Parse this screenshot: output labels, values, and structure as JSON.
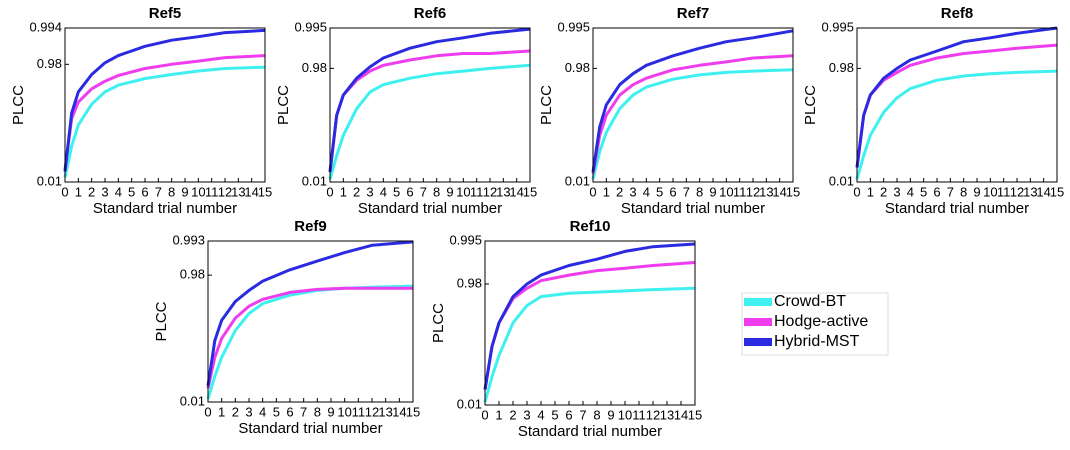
{
  "chart_data": [
    {
      "type": "line",
      "title": "Ref5",
      "xlabel": "Standard trial number",
      "ylabel": "PLCC",
      "yscale": "log-complement",
      "x": [
        0,
        0.5,
        1,
        2,
        3,
        4,
        6,
        8,
        10,
        12,
        15
      ],
      "xlim": [
        0,
        15
      ],
      "xticks": [
        0,
        1,
        2,
        3,
        4,
        5,
        6,
        7,
        8,
        9,
        10,
        11,
        12,
        13,
        14,
        15
      ],
      "ylim": [
        0.01,
        0.994
      ],
      "yticks": [
        0.01,
        0.98,
        0.994
      ],
      "series": [
        {
          "name": "Crowd-BT",
          "color": "#3ff0f0",
          "values": [
            0.15,
            0.7,
            0.85,
            0.925,
            0.95,
            0.96,
            0.968,
            0.972,
            0.975,
            0.977,
            0.978
          ]
        },
        {
          "name": "Hodge-active",
          "color": "#ee3cee",
          "values": [
            0.35,
            0.88,
            0.93,
            0.955,
            0.965,
            0.971,
            0.977,
            0.98,
            0.982,
            0.984,
            0.985
          ]
        },
        {
          "name": "Hybrid-MST",
          "color": "#2a2ae0",
          "values": [
            0.3,
            0.9,
            0.95,
            0.972,
            0.981,
            0.985,
            0.989,
            0.991,
            0.992,
            0.993,
            0.9935
          ]
        }
      ]
    },
    {
      "type": "line",
      "title": "Ref6",
      "xlabel": "Standard trial number",
      "ylabel": "PLCC",
      "yscale": "log-complement",
      "x": [
        0,
        0.5,
        1,
        2,
        3,
        4,
        6,
        8,
        10,
        12,
        15
      ],
      "xlim": [
        0,
        15
      ],
      "xticks": [
        0,
        1,
        2,
        3,
        4,
        5,
        6,
        7,
        8,
        9,
        10,
        11,
        12,
        13,
        14,
        15
      ],
      "ylim": [
        0.01,
        0.995
      ],
      "yticks": [
        0.01,
        0.98,
        0.995
      ],
      "series": [
        {
          "name": "Crowd-BT",
          "color": "#3ff0f0",
          "values": [
            0.1,
            0.6,
            0.8,
            0.92,
            0.955,
            0.965,
            0.972,
            0.976,
            0.978,
            0.98,
            0.982
          ]
        },
        {
          "name": "Hodge-active",
          "color": "#ee3cee",
          "values": [
            0.3,
            0.9,
            0.95,
            0.97,
            0.978,
            0.982,
            0.985,
            0.987,
            0.988,
            0.988,
            0.989
          ]
        },
        {
          "name": "Hybrid-MST",
          "color": "#2a2ae0",
          "values": [
            0.3,
            0.9,
            0.95,
            0.972,
            0.981,
            0.986,
            0.99,
            0.992,
            0.993,
            0.994,
            0.9948
          ]
        }
      ]
    },
    {
      "type": "line",
      "title": "Ref7",
      "xlabel": "Standard trial number",
      "ylabel": "PLCC",
      "yscale": "log-complement",
      "x": [
        0,
        0.5,
        1,
        2,
        3,
        4,
        6,
        8,
        10,
        12,
        15
      ],
      "xlim": [
        0,
        15
      ],
      "xticks": [
        0,
        1,
        2,
        3,
        4,
        5,
        6,
        7,
        8,
        9,
        10,
        11,
        12,
        13,
        14,
        15
      ],
      "ylim": [
        0.01,
        0.995
      ],
      "yticks": [
        0.01,
        0.98,
        0.995
      ],
      "series": [
        {
          "name": "Crowd-BT",
          "color": "#3ff0f0",
          "values": [
            0.1,
            0.65,
            0.82,
            0.92,
            0.95,
            0.962,
            0.971,
            0.975,
            0.977,
            0.978,
            0.979
          ]
        },
        {
          "name": "Hodge-active",
          "color": "#ee3cee",
          "values": [
            0.25,
            0.8,
            0.9,
            0.95,
            0.965,
            0.972,
            0.979,
            0.982,
            0.984,
            0.986,
            0.987
          ]
        },
        {
          "name": "Hybrid-MST",
          "color": "#2a2ae0",
          "values": [
            0.3,
            0.85,
            0.93,
            0.965,
            0.976,
            0.982,
            0.987,
            0.99,
            0.992,
            0.993,
            0.9945
          ]
        }
      ]
    },
    {
      "type": "line",
      "title": "Ref8",
      "xlabel": "Standard trial number",
      "ylabel": "PLCC",
      "yscale": "log-complement",
      "x": [
        0,
        0.5,
        1,
        2,
        3,
        4,
        6,
        8,
        10,
        12,
        15
      ],
      "xlim": [
        0,
        15
      ],
      "xticks": [
        0,
        1,
        2,
        3,
        4,
        5,
        6,
        7,
        8,
        9,
        10,
        11,
        12,
        13,
        14,
        15
      ],
      "ylim": [
        0.01,
        0.995
      ],
      "yticks": [
        0.01,
        0.98,
        0.995
      ],
      "series": [
        {
          "name": "Crowd-BT",
          "color": "#3ff0f0",
          "values": [
            0.1,
            0.6,
            0.8,
            0.91,
            0.945,
            0.96,
            0.97,
            0.974,
            0.976,
            0.977,
            0.978
          ]
        },
        {
          "name": "Hodge-active",
          "color": "#ee3cee",
          "values": [
            0.4,
            0.9,
            0.95,
            0.97,
            0.977,
            0.982,
            0.986,
            0.988,
            0.989,
            0.99,
            0.991
          ]
        },
        {
          "name": "Hybrid-MST",
          "color": "#2a2ae0",
          "values": [
            0.4,
            0.9,
            0.95,
            0.972,
            0.98,
            0.985,
            0.989,
            0.992,
            0.993,
            0.994,
            0.995
          ]
        }
      ]
    },
    {
      "type": "line",
      "title": "Ref9",
      "xlabel": "Standard trial number",
      "ylabel": "PLCC",
      "yscale": "log-complement",
      "x": [
        0,
        0.5,
        1,
        2,
        3,
        4,
        6,
        8,
        10,
        12,
        15
      ],
      "xlim": [
        0,
        15
      ],
      "xticks": [
        0,
        1,
        2,
        3,
        4,
        5,
        6,
        7,
        8,
        9,
        10,
        11,
        12,
        13,
        14,
        15
      ],
      "ylim": [
        0.01,
        0.993
      ],
      "yticks": [
        0.01,
        0.98,
        0.993
      ],
      "series": [
        {
          "name": "Crowd-BT",
          "color": "#3ff0f0",
          "values": [
            0.1,
            0.55,
            0.75,
            0.89,
            0.935,
            0.952,
            0.963,
            0.968,
            0.97,
            0.971,
            0.972
          ]
        },
        {
          "name": "Hodge-active",
          "color": "#ee3cee",
          "values": [
            0.35,
            0.75,
            0.86,
            0.925,
            0.948,
            0.958,
            0.966,
            0.969,
            0.97,
            0.97,
            0.97
          ]
        },
        {
          "name": "Hybrid-MST",
          "color": "#2a2ae0",
          "values": [
            0.4,
            0.85,
            0.92,
            0.955,
            0.968,
            0.976,
            0.983,
            0.987,
            0.99,
            0.992,
            0.9928
          ]
        }
      ]
    },
    {
      "type": "line",
      "title": "Ref10",
      "xlabel": "Standard trial number",
      "ylabel": "PLCC",
      "yscale": "log-complement",
      "x": [
        0,
        0.5,
        1,
        2,
        3,
        4,
        6,
        8,
        10,
        12,
        15
      ],
      "xlim": [
        0,
        15
      ],
      "xticks": [
        0,
        1,
        2,
        3,
        4,
        5,
        6,
        7,
        8,
        9,
        10,
        11,
        12,
        13,
        14,
        15
      ],
      "ylim": [
        0.01,
        0.995
      ],
      "yticks": [
        0.01,
        0.98,
        0.995
      ],
      "series": [
        {
          "name": "Crowd-BT",
          "color": "#3ff0f0",
          "values": [
            0.1,
            0.6,
            0.8,
            0.93,
            0.96,
            0.97,
            0.973,
            0.974,
            0.975,
            0.976,
            0.977
          ]
        },
        {
          "name": "Hodge-active",
          "color": "#ee3cee",
          "values": [
            0.4,
            0.85,
            0.93,
            0.968,
            0.977,
            0.982,
            0.985,
            0.987,
            0.988,
            0.989,
            0.99
          ]
        },
        {
          "name": "Hybrid-MST",
          "color": "#2a2ae0",
          "values": [
            0.4,
            0.85,
            0.93,
            0.97,
            0.98,
            0.985,
            0.989,
            0.991,
            0.993,
            0.994,
            0.9945
          ]
        }
      ]
    }
  ]
}
